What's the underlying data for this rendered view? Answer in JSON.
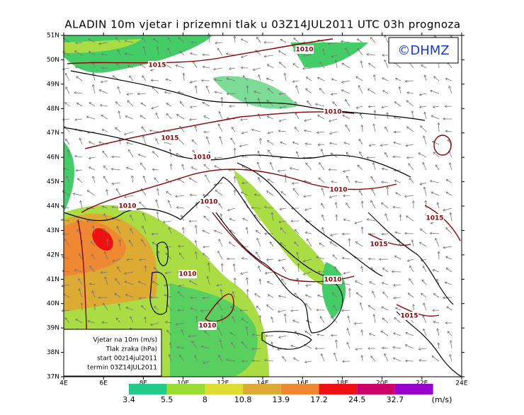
{
  "title": "ALADIN 10m vjetar i prizemni tlak u 03Z14JUL2011 UTC 03h prognoza",
  "copyright": "©DHMZ",
  "lat_labels": [
    "51N",
    "50N",
    "49N",
    "48N",
    "47N",
    "46N",
    "45N",
    "44N",
    "43N",
    "42N",
    "41N",
    "40N",
    "39N",
    "38N",
    "37N"
  ],
  "lon_labels": [
    "4E",
    "6E",
    "8E",
    "10E",
    "12E",
    "14E",
    "16E",
    "18E",
    "20E",
    "22E",
    "24E"
  ],
  "isobar_labels": [
    "1010",
    "1015",
    "1010",
    "1015",
    "1010",
    "1010",
    "1010",
    "1010",
    "1015",
    "1015",
    "1010",
    "1010",
    "1015",
    "1010"
  ],
  "legend": [
    "Vjetar na 10m (m/s)",
    "Tlak zraka (hPa)",
    "start 00z14jul2011",
    "termin 03Z14JUL2011"
  ],
  "colorbar": {
    "labels": [
      "3.4",
      "5.5",
      "8",
      "10.8",
      "13.9",
      "17.2",
      "24.5",
      "32.7"
    ],
    "colors": [
      "#22cc88",
      "#99dd33",
      "#dddd33",
      "#ddaa33",
      "#ee8833",
      "#ee1111",
      "#cc0066",
      "#9900cc"
    ],
    "unit": "(m/s)"
  }
}
